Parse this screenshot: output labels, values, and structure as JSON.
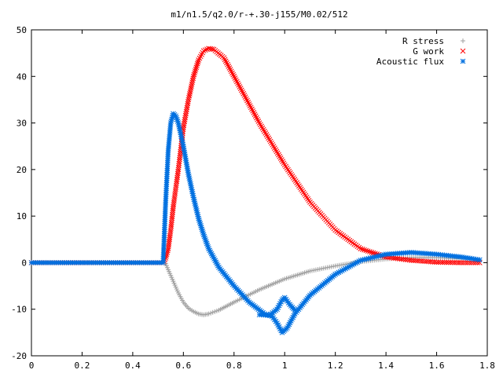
{
  "chart_data": {
    "type": "scatter",
    "title": "m1/n1.5/q2.0/r-+.30-j155/M0.02/512",
    "xlabel": "",
    "ylabel": "",
    "xlim": [
      0,
      1.8
    ],
    "ylim": [
      -20,
      50
    ],
    "x_ticks": [
      "0",
      "0.2",
      "0.4",
      "0.6",
      "0.8",
      "1",
      "1.2",
      "1.4",
      "1.6",
      "1.8"
    ],
    "y_ticks": [
      "-20",
      "-10",
      "0",
      "10",
      "20",
      "30",
      "40",
      "50"
    ],
    "grid": false,
    "legend_position": "top-right",
    "series": [
      {
        "name": "R stress",
        "marker": "plus",
        "color": "#a0a0a0",
        "points": [
          [
            0.0,
            0
          ],
          [
            0.3,
            0
          ],
          [
            0.52,
            0
          ],
          [
            0.53,
            -0.2
          ],
          [
            0.54,
            -1.5
          ],
          [
            0.56,
            -4
          ],
          [
            0.58,
            -6.5
          ],
          [
            0.6,
            -8.5
          ],
          [
            0.62,
            -9.8
          ],
          [
            0.64,
            -10.5
          ],
          [
            0.66,
            -11
          ],
          [
            0.68,
            -11.2
          ],
          [
            0.7,
            -11
          ],
          [
            0.74,
            -10.2
          ],
          [
            0.8,
            -8.5
          ],
          [
            0.9,
            -5.8
          ],
          [
            1.0,
            -3.5
          ],
          [
            1.1,
            -1.8
          ],
          [
            1.2,
            -0.7
          ],
          [
            1.3,
            0.2
          ],
          [
            1.4,
            0.8
          ],
          [
            1.5,
            1.1
          ],
          [
            1.6,
            1.1
          ],
          [
            1.7,
            0.8
          ],
          [
            1.77,
            0.5
          ]
        ]
      },
      {
        "name": "G work",
        "marker": "cross",
        "color": "#ff0000",
        "points": [
          [
            0.0,
            0
          ],
          [
            0.3,
            0
          ],
          [
            0.52,
            0
          ],
          [
            0.53,
            1
          ],
          [
            0.54,
            3
          ],
          [
            0.55,
            7
          ],
          [
            0.56,
            12
          ],
          [
            0.58,
            20
          ],
          [
            0.6,
            29
          ],
          [
            0.62,
            35
          ],
          [
            0.64,
            40
          ],
          [
            0.66,
            43.5
          ],
          [
            0.68,
            45.5
          ],
          [
            0.7,
            46
          ],
          [
            0.72,
            45.8
          ],
          [
            0.76,
            44
          ],
          [
            0.8,
            40
          ],
          [
            0.9,
            30
          ],
          [
            1.0,
            21
          ],
          [
            1.1,
            13
          ],
          [
            1.2,
            7
          ],
          [
            1.3,
            3
          ],
          [
            1.4,
            1.2
          ],
          [
            1.5,
            0.5
          ],
          [
            1.6,
            0.1
          ],
          [
            1.7,
            0
          ],
          [
            1.77,
            0
          ]
        ]
      },
      {
        "name": "Acoustic flux",
        "marker": "star",
        "color": "#0070e0",
        "points": [
          [
            0.0,
            0
          ],
          [
            0.3,
            0
          ],
          [
            0.52,
            0
          ],
          [
            0.53,
            13
          ],
          [
            0.54,
            24
          ],
          [
            0.55,
            30
          ],
          [
            0.56,
            32
          ],
          [
            0.57,
            31.5
          ],
          [
            0.58,
            30
          ],
          [
            0.6,
            25
          ],
          [
            0.62,
            19
          ],
          [
            0.64,
            14
          ],
          [
            0.66,
            9.5
          ],
          [
            0.68,
            6
          ],
          [
            0.7,
            3
          ],
          [
            0.74,
            -1
          ],
          [
            0.8,
            -5
          ],
          [
            0.86,
            -8.5
          ],
          [
            0.92,
            -11
          ],
          [
            0.95,
            -11.5
          ],
          [
            0.97,
            -13
          ],
          [
            0.99,
            -15
          ],
          [
            1.01,
            -14
          ],
          [
            1.04,
            -11
          ],
          [
            1.1,
            -7
          ],
          [
            1.2,
            -2.5
          ],
          [
            1.3,
            0.5
          ],
          [
            1.4,
            1.8
          ],
          [
            1.5,
            2.2
          ],
          [
            1.6,
            1.8
          ],
          [
            1.7,
            1.2
          ],
          [
            1.77,
            0.6
          ]
        ]
      },
      {
        "name": "",
        "marker": "star",
        "color": "#0070e0",
        "points": [
          [
            0.9,
            -11.2
          ],
          [
            0.94,
            -11.3
          ],
          [
            0.97,
            -10
          ],
          [
            0.99,
            -8
          ],
          [
            1.0,
            -7.5
          ],
          [
            1.02,
            -9
          ],
          [
            1.04,
            -10.2
          ]
        ]
      }
    ]
  }
}
